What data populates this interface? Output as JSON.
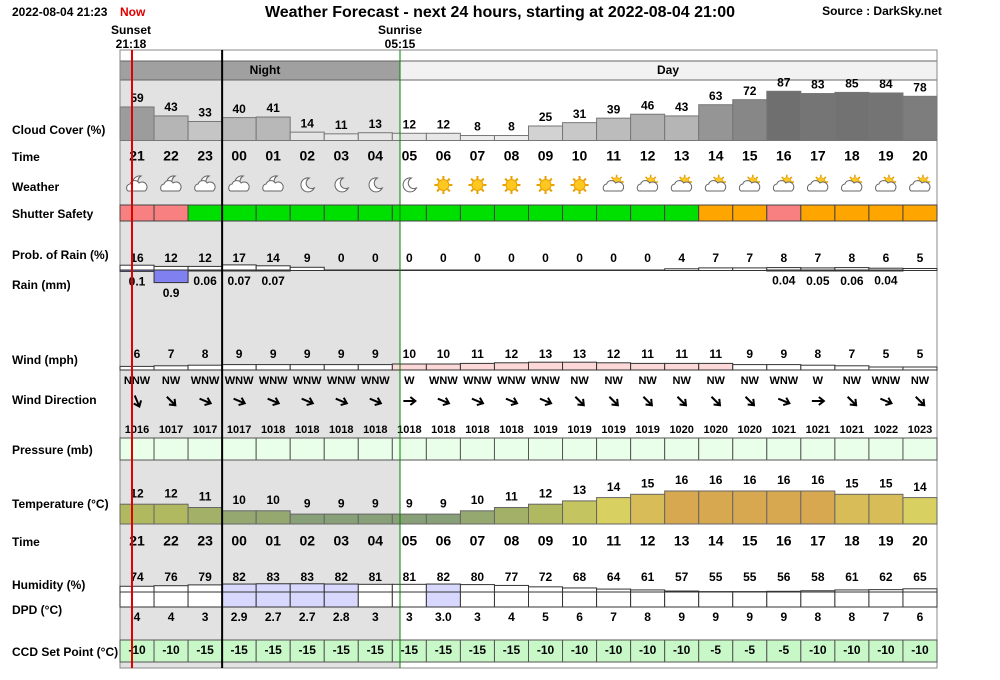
{
  "header": {
    "timestamp": "2022-08-04 21:23",
    "now": "Now",
    "title": "Weather Forecast - next 24 hours, starting at 2022-08-04 21:00",
    "source": "Source : DarkSky.net"
  },
  "sun": {
    "sunset_label": "Sunset",
    "sunset_time": "21:18",
    "sunrise_label": "Sunrise",
    "sunrise_time": "05:15"
  },
  "periods": {
    "night": "Night",
    "day": "Day"
  },
  "row_labels": {
    "cloud_cover": "Cloud Cover (%)",
    "time": "Time",
    "weather": "Weather",
    "shutter_safety": "Shutter Safety",
    "rain_probability": "Prob. of Rain (%)",
    "rain": "Rain (mm)",
    "wind": "Wind (mph)",
    "wind_direction": "Wind Direction",
    "pressure": "Pressure (mb)",
    "temperature": "Temperature (°C)",
    "time_2": "Time",
    "humidity": "Humidity (%)",
    "dpd": "DPD (°C)",
    "ccd_set_point": "CCD Set Point (°C)"
  },
  "rows": {
    "time": [
      "21",
      "22",
      "23",
      "00",
      "01",
      "02",
      "03",
      "04",
      "05",
      "06",
      "07",
      "08",
      "09",
      "10",
      "11",
      "12",
      "13",
      "14",
      "15",
      "16",
      "17",
      "18",
      "19",
      "20"
    ],
    "cloud_cover": [
      59,
      43,
      33,
      40,
      41,
      14,
      11,
      13,
      12,
      12,
      8,
      8,
      25,
      31,
      39,
      46,
      43,
      63,
      72,
      87,
      83,
      85,
      84,
      78
    ],
    "shutter_safety_colors": [
      "#f88080",
      "#f88080",
      "#00e000",
      "#00e000",
      "#00e000",
      "#00e000",
      "#00e000",
      "#00e000",
      "#00e000",
      "#00e000",
      "#00e000",
      "#00e000",
      "#00e000",
      "#00e000",
      "#00e000",
      "#00e000",
      "#00e000",
      "#ffa500",
      "#ffa500",
      "#f88080",
      "#ffa500",
      "#ffa500",
      "#ffa500",
      "#ffa500"
    ],
    "rain_probability": [
      16,
      12,
      12,
      17,
      14,
      9,
      0,
      0,
      0,
      0,
      0,
      0,
      0,
      0,
      0,
      0,
      4,
      7,
      7,
      8,
      7,
      8,
      6,
      5
    ],
    "rain": [
      0.1,
      0.9,
      0.06,
      0.07,
      0.07,
      null,
      null,
      null,
      null,
      null,
      null,
      null,
      null,
      null,
      null,
      null,
      null,
      null,
      null,
      0.04,
      0.05,
      0.06,
      0.04,
      null
    ],
    "wind": [
      6,
      7,
      8,
      9,
      9,
      9,
      9,
      9,
      10,
      10,
      11,
      12,
      13,
      13,
      12,
      11,
      11,
      11,
      9,
      9,
      8,
      7,
      5,
      5
    ],
    "wind_direction": [
      "NNW",
      "NW",
      "WNW",
      "WNW",
      "WNW",
      "WNW",
      "WNW",
      "WNW",
      "W",
      "WNW",
      "WNW",
      "WNW",
      "WNW",
      "NW",
      "NW",
      "NW",
      "NW",
      "NW",
      "NW",
      "WNW",
      "W",
      "NW",
      "WNW",
      "NW"
    ],
    "pressure": [
      1016,
      1017,
      1017,
      1017,
      1018,
      1018,
      1018,
      1018,
      1018,
      1018,
      1018,
      1018,
      1019,
      1019,
      1019,
      1019,
      1020,
      1020,
      1020,
      1021,
      1021,
      1021,
      1022,
      1023
    ],
    "temperature": [
      12,
      12,
      11,
      10,
      10,
      9,
      9,
      9,
      9,
      9,
      10,
      11,
      12,
      13,
      14,
      15,
      16,
      16,
      16,
      16,
      16,
      15,
      15,
      14
    ],
    "humidity": [
      74,
      76,
      79,
      82,
      83,
      83,
      82,
      81,
      81,
      82,
      80,
      77,
      72,
      68,
      64,
      61,
      57,
      55,
      55,
      56,
      58,
      61,
      62,
      65
    ],
    "humidity_colors": [
      "#ffffff",
      "#ffffff",
      "#ffffff",
      "#d8d8ff",
      "#d8d8ff",
      "#d8d8ff",
      "#d8d8ff",
      "#ffffff",
      "#ffffff",
      "#d8d8ff",
      "#ffffff",
      "#ffffff",
      "#ffffff",
      "#ffffff",
      "#ffffff",
      "#ffffff",
      "#ffffff",
      "#ffffff",
      "#ffffff",
      "#ffffff",
      "#ffffff",
      "#ffffff",
      "#ffffff",
      "#ffffff"
    ],
    "dpd": [
      "4",
      "4",
      "3",
      "2.9",
      "2.7",
      "2.7",
      "2.8",
      "3",
      "3",
      "3.0",
      "3",
      "4",
      "5",
      "6",
      "7",
      "8",
      "9",
      "9",
      "9",
      "9",
      "8",
      "8",
      "7",
      "6"
    ],
    "ccd_set_point": [
      -10,
      -10,
      -15,
      -15,
      -15,
      -15,
      -15,
      -15,
      -15,
      -15,
      -15,
      -15,
      -10,
      -10,
      -10,
      -10,
      -10,
      -5,
      -5,
      -5,
      -10,
      -10,
      -10,
      -10
    ]
  }
}
